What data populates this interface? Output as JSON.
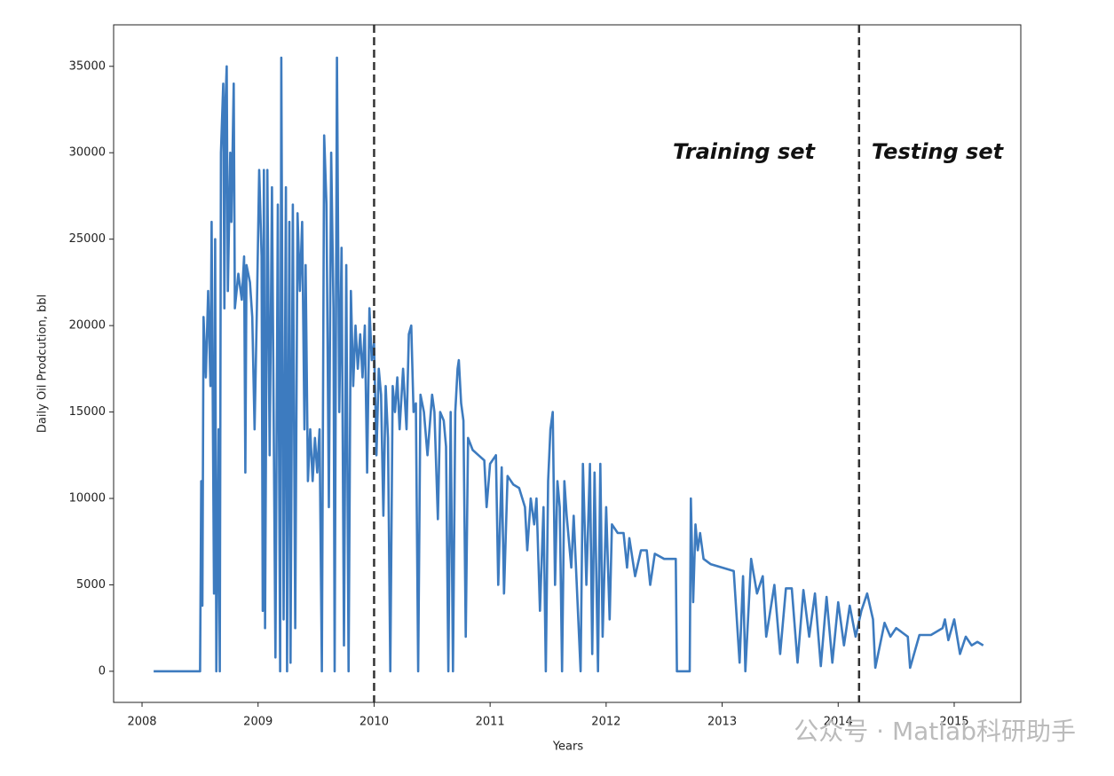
{
  "chart_data": {
    "type": "line",
    "xlabel": "Years",
    "ylabel": "Daily Oil Prodcution, bbl",
    "color": "#3d7bbf",
    "xlim": [
      2007.755,
      2015.574
    ],
    "ylim": [
      -1800,
      37400
    ],
    "xticks": [
      2008,
      2009,
      2010,
      2011,
      2012,
      2013,
      2014,
      2015
    ],
    "yticks": [
      0,
      5000,
      10000,
      15000,
      20000,
      25000,
      30000,
      35000
    ],
    "vlines": [
      2010,
      2014.18
    ],
    "annotations": [
      "Training set",
      "Testing set"
    ],
    "watermark": "公众号 · Matlab科研助手",
    "x": [
      2008.1,
      2008.5,
      2008.51,
      2008.52,
      2008.53,
      2008.55,
      2008.57,
      2008.59,
      2008.6,
      2008.62,
      2008.63,
      2008.64,
      2008.66,
      2008.67,
      2008.68,
      2008.7,
      2008.71,
      2008.72,
      2008.73,
      2008.74,
      2008.76,
      2008.77,
      2008.79,
      2008.8,
      2008.83,
      2008.86,
      2008.88,
      2008.89,
      2008.9,
      2008.93,
      2008.95,
      2008.97,
      2008.99,
      2009.01,
      2009.03,
      2009.04,
      2009.05,
      2009.06,
      2009.08,
      2009.1,
      2009.12,
      2009.15,
      2009.17,
      2009.19,
      2009.2,
      2009.22,
      2009.24,
      2009.25,
      2009.27,
      2009.28,
      2009.3,
      2009.32,
      2009.34,
      2009.36,
      2009.38,
      2009.4,
      2009.41,
      2009.43,
      2009.45,
      2009.47,
      2009.49,
      2009.51,
      2009.53,
      2009.55,
      2009.57,
      2009.59,
      2009.61,
      2009.63,
      2009.65,
      2009.66,
      2009.68,
      2009.7,
      2009.72,
      2009.74,
      2009.76,
      2009.78,
      2009.8,
      2009.82,
      2009.84,
      2009.86,
      2009.88,
      2009.9,
      2009.92,
      2009.94,
      2009.96,
      2009.98,
      2010.0,
      2010.02,
      2010.04,
      2010.06,
      2010.08,
      2010.1,
      2010.12,
      2010.14,
      2010.16,
      2010.18,
      2010.2,
      2010.22,
      2010.25,
      2010.28,
      2010.3,
      2010.32,
      2010.34,
      2010.36,
      2010.38,
      2010.4,
      2010.43,
      2010.46,
      2010.5,
      2010.52,
      2010.55,
      2010.57,
      2010.6,
      2010.62,
      2010.64,
      2010.66,
      2010.68,
      2010.7,
      2010.72,
      2010.73,
      2010.75,
      2010.77,
      2010.79,
      2010.81,
      2010.85,
      2010.9,
      2010.95,
      2010.97,
      2011.0,
      2011.05,
      2011.07,
      2011.1,
      2011.12,
      2011.15,
      2011.2,
      2011.25,
      2011.3,
      2011.32,
      2011.35,
      2011.38,
      2011.4,
      2011.43,
      2011.46,
      2011.48,
      2011.5,
      2011.52,
      2011.54,
      2011.56,
      2011.58,
      2011.6,
      2011.62,
      2011.64,
      2011.66,
      2011.7,
      2011.72,
      2011.78,
      2011.8,
      2011.83,
      2011.86,
      2011.88,
      2011.9,
      2011.93,
      2011.95,
      2011.97,
      2012.0,
      2012.03,
      2012.05,
      2012.1,
      2012.15,
      2012.18,
      2012.2,
      2012.25,
      2012.3,
      2012.35,
      2012.38,
      2012.42,
      2012.5,
      2012.6,
      2012.61,
      2012.72,
      2012.73,
      2012.75,
      2012.77,
      2012.79,
      2012.81,
      2012.84,
      2012.9,
      2013.0,
      2013.1,
      2013.15,
      2013.18,
      2013.2,
      2013.25,
      2013.3,
      2013.35,
      2013.38,
      2013.45,
      2013.5,
      2013.55,
      2013.6,
      2013.65,
      2013.7,
      2013.75,
      2013.8,
      2013.85,
      2013.9,
      2013.95,
      2014.0,
      2014.05,
      2014.1,
      2014.15,
      2014.2,
      2014.25,
      2014.3,
      2014.32,
      2014.4,
      2014.45,
      2014.5,
      2014.6,
      2014.62,
      2014.7,
      2014.8,
      2014.9,
      2014.92,
      2014.95,
      2015.0,
      2015.05,
      2015.1,
      2015.15,
      2015.2,
      2015.25
    ],
    "values": [
      0,
      0,
      11000,
      3800,
      20500,
      17000,
      22000,
      16500,
      26000,
      4500,
      25000,
      0,
      14000,
      0,
      30000,
      34000,
      21000,
      33000,
      35000,
      22000,
      30000,
      26000,
      34000,
      21000,
      23000,
      21500,
      24000,
      11500,
      23500,
      22500,
      20500,
      14000,
      21000,
      29000,
      24000,
      3500,
      29000,
      2500,
      29000,
      12500,
      28000,
      800,
      27000,
      0,
      35500,
      3000,
      28000,
      0,
      26000,
      500,
      27000,
      2500,
      26500,
      22000,
      26000,
      14000,
      23500,
      11000,
      14000,
      11000,
      13500,
      11500,
      14000,
      0,
      31000,
      27000,
      9500,
      30000,
      21000,
      0,
      35500,
      15000,
      24500,
      1500,
      23500,
      0,
      22000,
      16500,
      20000,
      17500,
      19500,
      17000,
      20000,
      11500,
      21000,
      18000,
      19000,
      12500,
      17500,
      16000,
      9000,
      16500,
      13500,
      0,
      16500,
      15000,
      17000,
      14000,
      17500,
      14000,
      19500,
      20000,
      15000,
      15500,
      0,
      16000,
      15000,
      12500,
      16000,
      15000,
      8800,
      15000,
      14500,
      13000,
      0,
      15000,
      0,
      15000,
      17500,
      18000,
      15500,
      14500,
      2000,
      13500,
      12800,
      12500,
      12200,
      9500,
      12000,
      12500,
      5000,
      11800,
      4500,
      11300,
      10800,
      10600,
      9500,
      7000,
      10000,
      8500,
      10000,
      3500,
      9500,
      0,
      11000,
      14000,
      15000,
      5000,
      11000,
      9500,
      0,
      11000,
      9000,
      6000,
      9000,
      0,
      12000,
      5000,
      12000,
      1000,
      11500,
      0,
      12000,
      2000,
      9500,
      3000,
      8500,
      8000,
      8000,
      6000,
      7700,
      5500,
      7000,
      7000,
      5000,
      6800,
      6500,
      6500,
      0,
      0,
      10000,
      4000,
      8500,
      7000,
      8000,
      6500,
      6200,
      6000,
      5800,
      500,
      5500,
      0,
      6500,
      4500,
      5500,
      2000,
      5000,
      1000,
      4800,
      4800,
      500,
      4700,
      2000,
      4500,
      300,
      4300,
      500,
      4000,
      1500,
      3800,
      2000,
      3500,
      4500,
      3000,
      200,
      2800,
      2000,
      2500,
      2000,
      200,
      2100,
      2100,
      2500,
      3000,
      1800,
      3000,
      1000,
      2000,
      1500,
      1700,
      1500
    ]
  }
}
